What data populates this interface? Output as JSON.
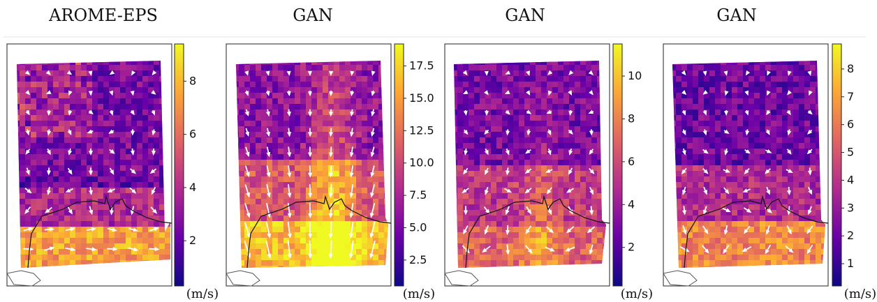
{
  "chart_data": [
    {
      "type": "heatmap",
      "title": "AROME-EPS",
      "colormap": "plasma",
      "colorbar_ticks": [
        2,
        4,
        6,
        8
      ],
      "colorbar_range": [
        0.3,
        9.4
      ],
      "unit": "(m/s)"
    },
    {
      "type": "heatmap",
      "title": "GAN",
      "colormap": "plasma",
      "colorbar_ticks": [
        "2.5",
        "5.0",
        "7.5",
        "10.0",
        "12.5",
        "15.0",
        "17.5"
      ],
      "colorbar_range": [
        0.5,
        19.2
      ],
      "unit": "(m/s)"
    },
    {
      "type": "heatmap",
      "title": "GAN",
      "colormap": "plasma",
      "colorbar_ticks": [
        2,
        4,
        6,
        8,
        10
      ],
      "colorbar_range": [
        0.2,
        11.5
      ],
      "unit": "(m/s)"
    },
    {
      "type": "heatmap",
      "title": "GAN",
      "colormap": "plasma",
      "colorbar_ticks": [
        1,
        2,
        3,
        4,
        5,
        6,
        7,
        8
      ],
      "colorbar_range": [
        0.2,
        8.9
      ],
      "unit": "(m/s)"
    }
  ],
  "colors": {
    "plasma_stops": [
      "#0d0887",
      "#6a00a8",
      "#b12a90",
      "#e16462",
      "#fca636",
      "#f0f921"
    ],
    "background": "#ffffff",
    "arrow": "#ffffff",
    "coastline": "#111111"
  }
}
